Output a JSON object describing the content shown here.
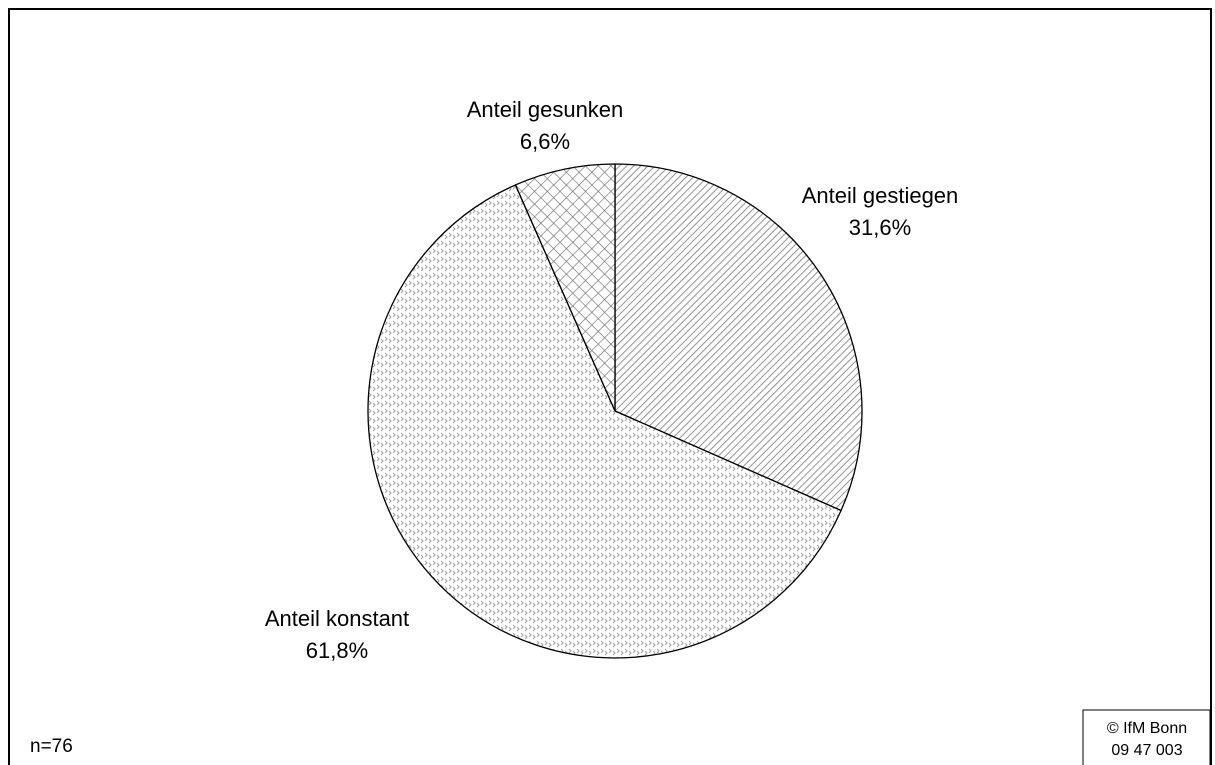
{
  "chart_data": {
    "type": "pie",
    "categories": [
      "Anteil gestiegen",
      "Anteil konstant",
      "Anteil gesunken"
    ],
    "values": [
      31.6,
      61.8,
      6.6
    ],
    "value_labels": [
      "31,6%",
      "61,8%",
      "6,6%"
    ],
    "note": "n=76",
    "source": [
      "© IfM Bonn",
      "09 47 003"
    ]
  }
}
